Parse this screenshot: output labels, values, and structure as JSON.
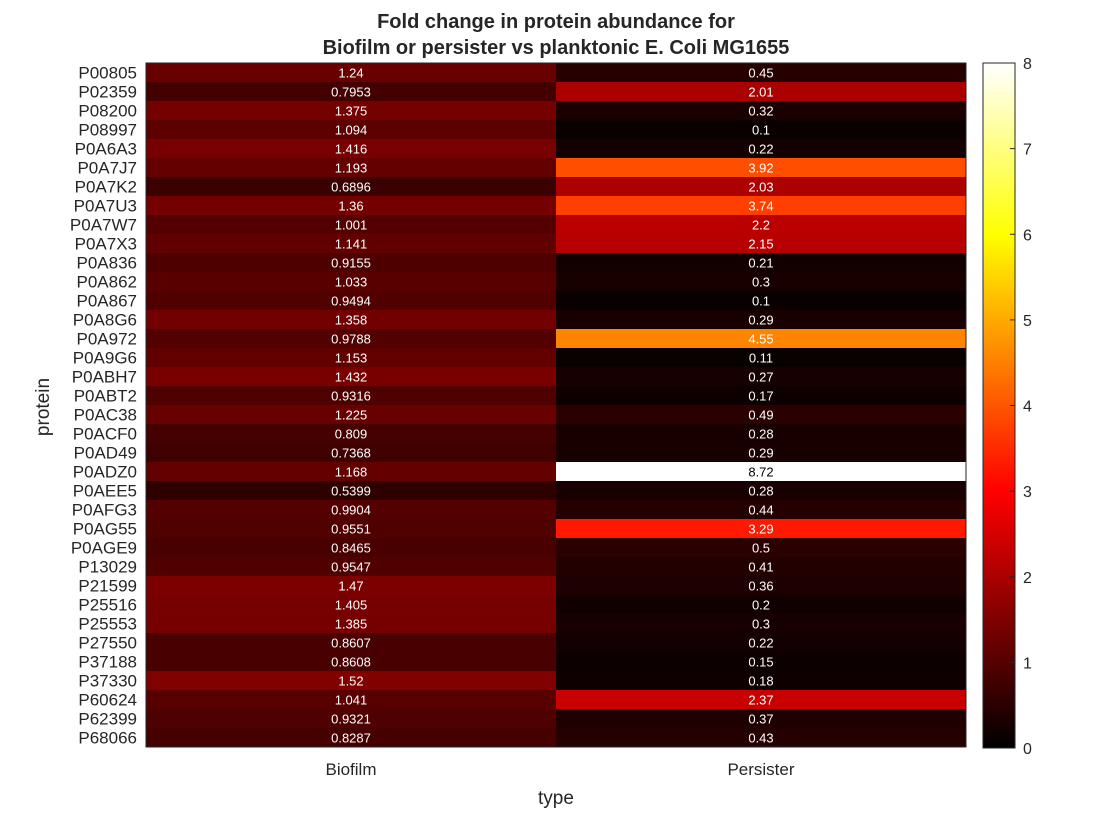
{
  "chart_data": {
    "type": "heatmap",
    "title": [
      "Fold change in protein abundance for",
      "Biofilm or persister vs planktonic E. Coli MG1655"
    ],
    "xlabel": "type",
    "ylabel": "protein",
    "columns": [
      "Biofilm",
      "Persister"
    ],
    "rows": [
      "P00805",
      "P02359",
      "P08200",
      "P08997",
      "P0A6A3",
      "P0A7J7",
      "P0A7K2",
      "P0A7U3",
      "P0A7W7",
      "P0A7X3",
      "P0A836",
      "P0A862",
      "P0A867",
      "P0A8G6",
      "P0A972",
      "P0A9G6",
      "P0ABH7",
      "P0ABT2",
      "P0AC38",
      "P0ACF0",
      "P0AD49",
      "P0ADZ0",
      "P0AEE5",
      "P0AFG3",
      "P0AG55",
      "P0AGE9",
      "P13029",
      "P21599",
      "P25516",
      "P25553",
      "P27550",
      "P37188",
      "P37330",
      "P60624",
      "P62399",
      "P68066"
    ],
    "values": [
      [
        1.24,
        0.45
      ],
      [
        0.7953,
        2.01
      ],
      [
        1.375,
        0.32
      ],
      [
        1.094,
        0.1
      ],
      [
        1.416,
        0.22
      ],
      [
        1.193,
        3.92
      ],
      [
        0.6896,
        2.03
      ],
      [
        1.36,
        3.74
      ],
      [
        1.001,
        2.2
      ],
      [
        1.141,
        2.15
      ],
      [
        0.9155,
        0.21
      ],
      [
        1.033,
        0.3
      ],
      [
        0.9494,
        0.1
      ],
      [
        1.358,
        0.29
      ],
      [
        0.9788,
        4.55
      ],
      [
        1.153,
        0.11
      ],
      [
        1.432,
        0.27
      ],
      [
        0.9316,
        0.17
      ],
      [
        1.225,
        0.49
      ],
      [
        0.809,
        0.28
      ],
      [
        0.7368,
        0.29
      ],
      [
        1.168,
        8.72
      ],
      [
        0.5399,
        0.28
      ],
      [
        0.9904,
        0.44
      ],
      [
        0.9551,
        3.29
      ],
      [
        0.8465,
        0.5
      ],
      [
        0.9547,
        0.41
      ],
      [
        1.47,
        0.36
      ],
      [
        1.405,
        0.2
      ],
      [
        1.385,
        0.3
      ],
      [
        0.8607,
        0.22
      ],
      [
        0.8608,
        0.15
      ],
      [
        1.52,
        0.18
      ],
      [
        1.041,
        2.37
      ],
      [
        0.9321,
        0.37
      ],
      [
        0.8287,
        0.43
      ]
    ],
    "colormap": "hot",
    "color_range": [
      0,
      8
    ],
    "colorbar_ticks": [
      0,
      1,
      2,
      3,
      4,
      5,
      6,
      7,
      8
    ],
    "colorbar_position": "right"
  }
}
